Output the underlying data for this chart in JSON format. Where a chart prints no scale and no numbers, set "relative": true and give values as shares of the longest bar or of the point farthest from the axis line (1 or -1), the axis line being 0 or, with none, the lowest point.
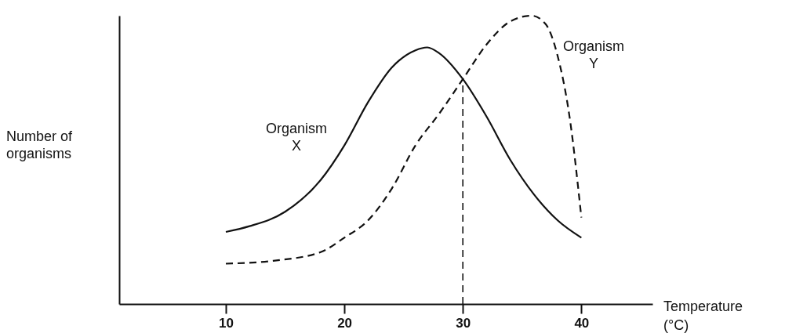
{
  "chart_data": {
    "type": "line",
    "relative": true,
    "xlabel": "Temperature (°C)",
    "ylabel": "Number of organisms",
    "xlim": [
      1,
      46
    ],
    "xticks": [
      10,
      20,
      30,
      40
    ],
    "grid": false,
    "series": [
      {
        "name": "Organism X",
        "color": "#111111",
        "line_style": "solid",
        "x": [
          10,
          12,
          15,
          18,
          20,
          22,
          24,
          26,
          27,
          28,
          30,
          32,
          34,
          36,
          38,
          40
        ],
        "values": [
          0.25,
          0.27,
          0.32,
          0.43,
          0.55,
          0.7,
          0.82,
          0.88,
          0.89,
          0.87,
          0.78,
          0.65,
          0.5,
          0.38,
          0.29,
          0.23
        ]
      },
      {
        "name": "Organism Y",
        "color": "#111111",
        "line_style": "dashed",
        "x": [
          10,
          14,
          18,
          20,
          22,
          24,
          26,
          28,
          30,
          32,
          34,
          35.8,
          37,
          38,
          39,
          40
        ],
        "values": [
          0.14,
          0.15,
          0.18,
          0.23,
          0.29,
          0.4,
          0.55,
          0.66,
          0.78,
          0.9,
          0.98,
          1,
          0.97,
          0.86,
          0.65,
          0.3
        ]
      }
    ],
    "ref_lines": [
      {
        "axis": "x",
        "value": 30,
        "line_style": "dashed",
        "color": "#111111"
      }
    ]
  }
}
